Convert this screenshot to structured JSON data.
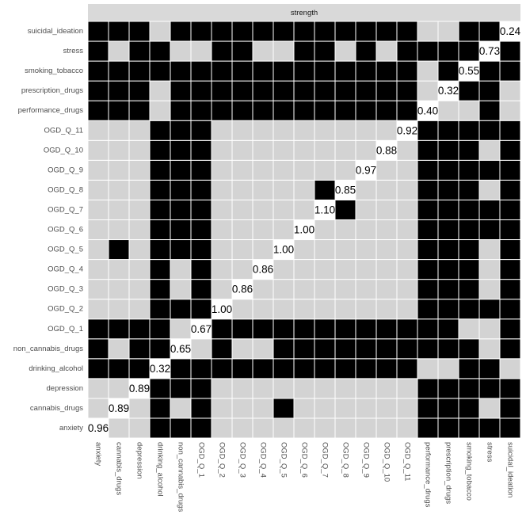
{
  "chart_data": {
    "type": "heatmap",
    "facet": "strength",
    "categories": [
      "anxiety",
      "cannabis_drugs",
      "depression",
      "drinking_alcohol",
      "non_cannabis_drugs",
      "OGD_Q_1",
      "OGD_Q_2",
      "OGD_Q_3",
      "OGD_Q_4",
      "OGD_Q_5",
      "OGD_Q_6",
      "OGD_Q_7",
      "OGD_Q_8",
      "OGD_Q_9",
      "OGD_Q_10",
      "OGD_Q_11",
      "performance_drugs",
      "prescription_drugs",
      "smoking_tobacco",
      "stress",
      "suicidal_ideation"
    ],
    "cells": [
      [
        null,
        0,
        0,
        1,
        1,
        1,
        0,
        0,
        0,
        0,
        0,
        0,
        0,
        0,
        0,
        0,
        1,
        1,
        1,
        1,
        1
      ],
      [
        0,
        null,
        0,
        1,
        0,
        1,
        0,
        0,
        0,
        1,
        0,
        0,
        0,
        0,
        0,
        0,
        1,
        1,
        1,
        0,
        1
      ],
      [
        0,
        0,
        null,
        1,
        1,
        1,
        0,
        0,
        0,
        0,
        0,
        0,
        0,
        0,
        0,
        0,
        1,
        1,
        1,
        1,
        1
      ],
      [
        1,
        1,
        1,
        null,
        1,
        1,
        1,
        1,
        1,
        1,
        1,
        1,
        1,
        1,
        1,
        1,
        0,
        0,
        1,
        1,
        0
      ],
      [
        1,
        0,
        1,
        1,
        null,
        0,
        1,
        0,
        0,
        1,
        1,
        1,
        1,
        1,
        1,
        1,
        1,
        1,
        1,
        0,
        1
      ],
      [
        1,
        1,
        1,
        1,
        0,
        null,
        1,
        1,
        1,
        1,
        1,
        1,
        1,
        1,
        1,
        1,
        1,
        1,
        0,
        0,
        1
      ],
      [
        0,
        0,
        0,
        1,
        1,
        1,
        null,
        0,
        0,
        0,
        0,
        0,
        0,
        0,
        0,
        0,
        1,
        1,
        1,
        1,
        1
      ],
      [
        0,
        0,
        0,
        1,
        0,
        1,
        0,
        null,
        0,
        0,
        0,
        0,
        0,
        0,
        0,
        0,
        1,
        1,
        1,
        0,
        1
      ],
      [
        0,
        0,
        0,
        1,
        0,
        1,
        0,
        0,
        null,
        0,
        0,
        0,
        0,
        0,
        0,
        0,
        1,
        1,
        1,
        0,
        1
      ],
      [
        0,
        1,
        0,
        1,
        1,
        1,
        0,
        0,
        0,
        null,
        0,
        0,
        0,
        0,
        0,
        0,
        1,
        1,
        1,
        0,
        1
      ],
      [
        0,
        0,
        0,
        1,
        1,
        1,
        0,
        0,
        0,
        0,
        null,
        0,
        0,
        0,
        0,
        0,
        1,
        1,
        1,
        1,
        1
      ],
      [
        0,
        0,
        0,
        1,
        1,
        1,
        0,
        0,
        0,
        0,
        0,
        null,
        1,
        0,
        0,
        0,
        1,
        1,
        1,
        1,
        1
      ],
      [
        0,
        0,
        0,
        1,
        1,
        1,
        0,
        0,
        0,
        0,
        0,
        1,
        null,
        0,
        0,
        0,
        1,
        1,
        1,
        0,
        1
      ],
      [
        0,
        0,
        0,
        1,
        1,
        1,
        0,
        0,
        0,
        0,
        0,
        0,
        0,
        null,
        0,
        0,
        1,
        1,
        1,
        1,
        1
      ],
      [
        0,
        0,
        0,
        1,
        1,
        1,
        0,
        0,
        0,
        0,
        0,
        0,
        0,
        0,
        null,
        0,
        1,
        1,
        1,
        0,
        1
      ],
      [
        0,
        0,
        0,
        1,
        1,
        1,
        0,
        0,
        0,
        0,
        0,
        0,
        0,
        0,
        0,
        null,
        1,
        1,
        1,
        1,
        1
      ],
      [
        1,
        1,
        1,
        0,
        1,
        1,
        1,
        1,
        1,
        1,
        1,
        1,
        1,
        1,
        1,
        1,
        null,
        0,
        0,
        1,
        0
      ],
      [
        1,
        1,
        1,
        0,
        1,
        1,
        1,
        1,
        1,
        1,
        1,
        1,
        1,
        1,
        1,
        1,
        0,
        null,
        1,
        1,
        0
      ],
      [
        1,
        1,
        1,
        1,
        1,
        1,
        1,
        1,
        1,
        1,
        1,
        1,
        1,
        1,
        1,
        1,
        0,
        1,
        null,
        1,
        1
      ],
      [
        1,
        0,
        1,
        1,
        0,
        0,
        1,
        1,
        0,
        0,
        1,
        1,
        0,
        1,
        0,
        1,
        1,
        1,
        1,
        null,
        1
      ],
      [
        1,
        1,
        1,
        0,
        1,
        1,
        1,
        1,
        1,
        1,
        1,
        1,
        1,
        1,
        1,
        1,
        0,
        0,
        1,
        1,
        null
      ]
    ],
    "values": [
      0.96,
      0.89,
      0.89,
      0.32,
      0.65,
      0.67,
      1.0,
      0.86,
      0.86,
      1.0,
      1.0,
      1.1,
      0.85,
      0.97,
      0.88,
      0.92,
      0.4,
      0.32,
      0.55,
      0.73,
      0.24
    ],
    "value_labels": [
      "0.96",
      "0.89",
      "0.89",
      "0.32",
      "0.65",
      "0.67",
      "1.00",
      "0.86",
      "0.86",
      "1.00",
      "1.00",
      "1.10",
      "0.85",
      "0.97",
      "0.88",
      "0.92",
      "0.40",
      "0.32",
      "0.55",
      "0.73",
      "0.24"
    ],
    "colors": [
      "#d3d3d3",
      "#000000"
    ],
    "diagonal_color": "#ffffff"
  }
}
